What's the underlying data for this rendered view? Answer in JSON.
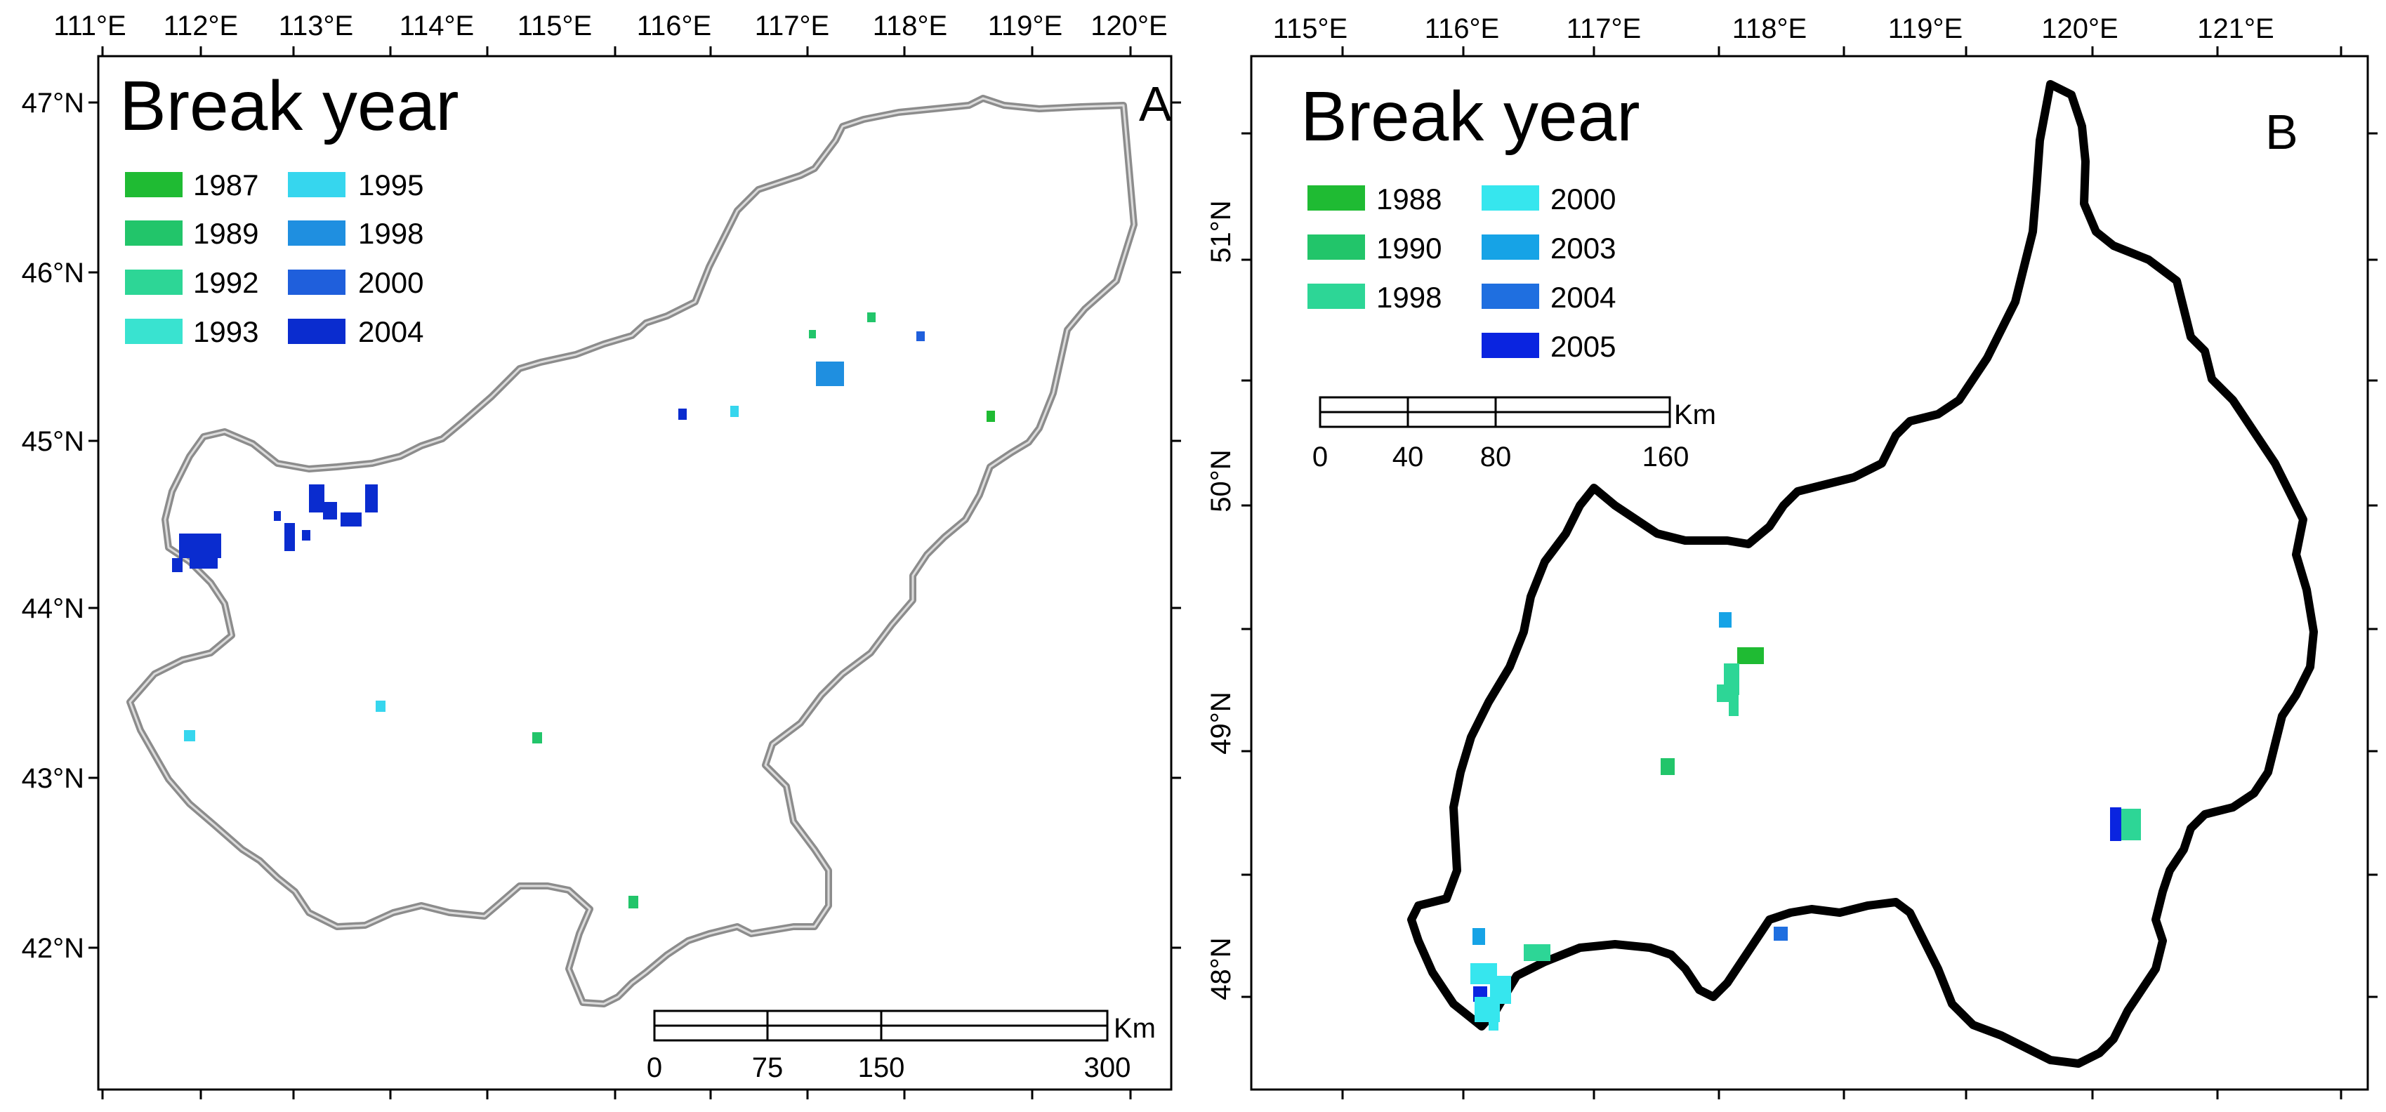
{
  "panel_a": {
    "letter": "A",
    "legend_title": "Break year",
    "legend_items": [
      {
        "year": "1987",
        "color": "#1fbb33"
      },
      {
        "year": "1989",
        "color": "#22c56a"
      },
      {
        "year": "1992",
        "color": "#2dd696"
      },
      {
        "year": "1993",
        "color": "#39e3d0"
      },
      {
        "year": "1995",
        "color": "#36d6ee"
      },
      {
        "year": "1998",
        "color": "#1f8fe0"
      },
      {
        "year": "2000",
        "color": "#1f5fdc"
      },
      {
        "year": "2004",
        "color": "#0a2ccf"
      }
    ],
    "lon_labels": [
      "111°E",
      "112°E",
      "113°E",
      "114°E",
      "115°E",
      "116°E",
      "117°E",
      "118°E",
      "119°E",
      "120°E"
    ],
    "lat_labels": [
      "47°N",
      "46°N",
      "45°N",
      "44°N",
      "43°N",
      "42°N"
    ],
    "scale": {
      "labels": [
        "0",
        "75",
        "150",
        "300"
      ],
      "unit": "Km"
    }
  },
  "panel_b": {
    "letter": "B",
    "legend_title": "Break year",
    "legend_items": [
      {
        "year": "1988",
        "color": "#1fbb33"
      },
      {
        "year": "1990",
        "color": "#22c56a"
      },
      {
        "year": "1998",
        "color": "#2dd696"
      },
      {
        "year": "2000",
        "color": "#36e6ee"
      },
      {
        "year": "2003",
        "color": "#16a3e6"
      },
      {
        "year": "2004",
        "color": "#1f6fe0"
      },
      {
        "year": "2005",
        "color": "#0a24e0"
      }
    ],
    "lon_labels": [
      "115°E",
      "116°E",
      "117°E",
      "118°E",
      "119°E",
      "120°E",
      "121°E"
    ],
    "lat_labels": [
      "51°N",
      "50°N",
      "49°N",
      "48°N"
    ],
    "scale": {
      "labels": [
        "0",
        "40",
        "80",
        "160"
      ],
      "unit": "Km"
    }
  }
}
